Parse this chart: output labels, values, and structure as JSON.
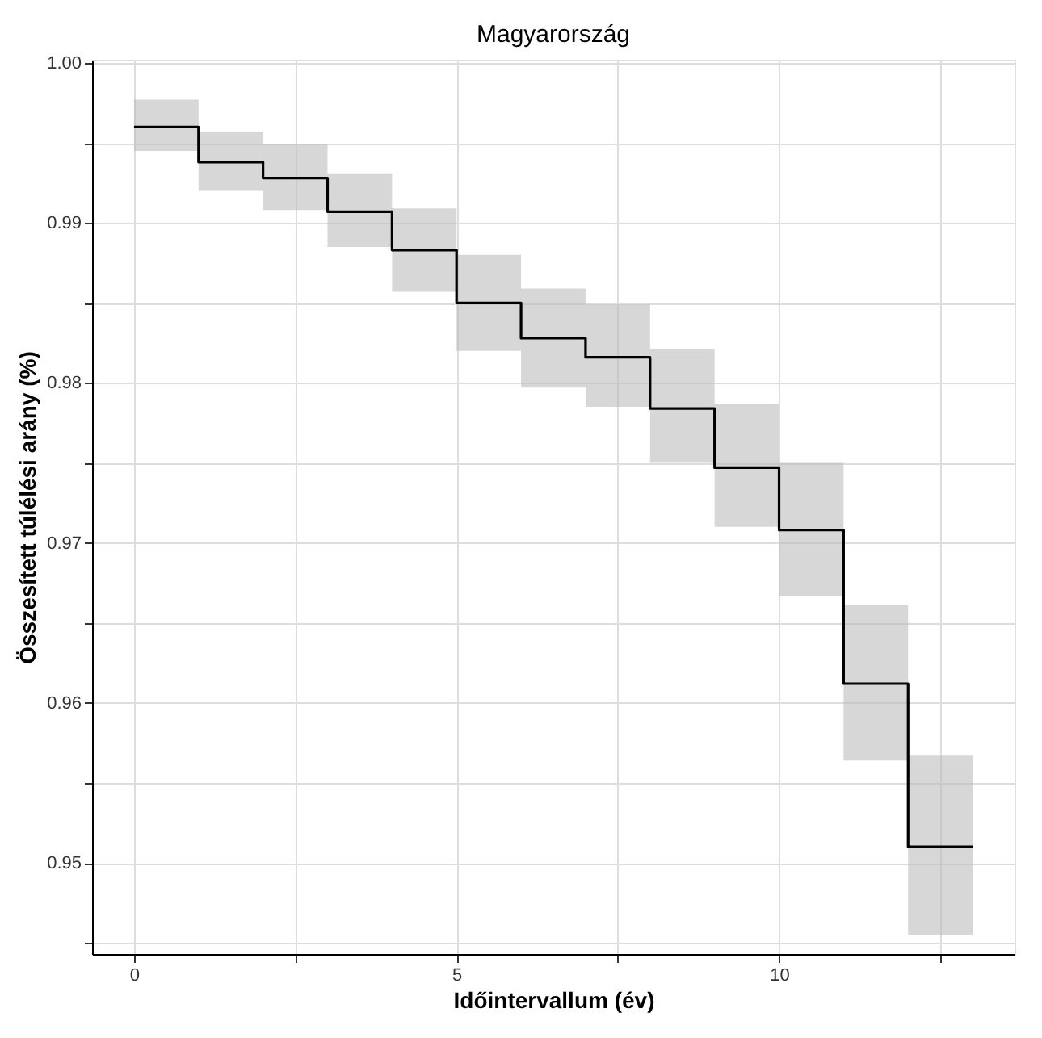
{
  "chart_data": {
    "type": "step",
    "title": "Magyarország",
    "xlabel": "Időintervallum (év)",
    "ylabel": "Összesített túlélési arány (%)",
    "x": [
      0,
      1,
      2,
      3,
      4,
      5,
      6,
      7,
      8,
      9,
      10,
      11,
      12,
      13
    ],
    "series": [
      {
        "color": "#000000",
        "values": [
          0.996,
          0.9938,
          0.9928,
          0.9907,
          0.9883,
          0.985,
          0.9828,
          0.9816,
          0.9784,
          0.9747,
          0.9708,
          0.9612,
          0.951,
          0.951
        ],
        "lower": [
          0.9945,
          0.992,
          0.9908,
          0.9885,
          0.9857,
          0.982,
          0.9797,
          0.9785,
          0.975,
          0.971,
          0.9667,
          0.9564,
          0.9455,
          0.9455
        ],
        "upper": [
          0.9977,
          0.9957,
          0.9949,
          0.9931,
          0.9909,
          0.988,
          0.9859,
          0.9849,
          0.9821,
          0.9787,
          0.975,
          0.9661,
          0.9567,
          0.9567
        ]
      }
    ],
    "xlim": [
      -0.65,
      13.65
    ],
    "ylim": [
      0.9443,
      1.0002
    ],
    "xticks": [
      0,
      {
        "value": 2.5,
        "label": null
      },
      5,
      {
        "value": 7.5,
        "label": null
      },
      10,
      {
        "value": 12.5,
        "label": null
      }
    ],
    "yticks": [
      {
        "value": 0.945,
        "label": null
      },
      0.95,
      {
        "value": 0.955,
        "label": null
      },
      0.96,
      {
        "value": 0.965,
        "label": null
      },
      0.97,
      {
        "value": 0.975,
        "label": null
      },
      0.98,
      {
        "value": 0.985,
        "label": null
      },
      0.99,
      {
        "value": 0.995,
        "label": null
      },
      {
        "value": 1,
        "label": "1.00"
      }
    ],
    "grid": true
  }
}
